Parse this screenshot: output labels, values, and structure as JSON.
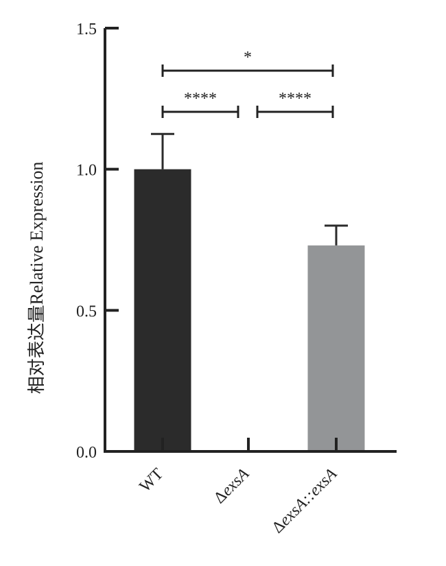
{
  "chart_data": {
    "type": "bar",
    "ylabel": "相对表达量Relative Expression",
    "ylim": [
      0,
      1.5
    ],
    "yticks": [
      {
        "value": 0.0,
        "label": "0.0"
      },
      {
        "value": 0.5,
        "label": "0.5"
      },
      {
        "value": 1.0,
        "label": "1.0"
      },
      {
        "value": 1.5,
        "label": "1.5"
      }
    ],
    "categories": [
      {
        "prefix": "",
        "main": "WT"
      },
      {
        "prefix": "Δ",
        "main": "exsA"
      },
      {
        "prefix": "Δ",
        "main": "exsA::exsA"
      }
    ],
    "values": [
      1.0,
      0.0,
      0.73
    ],
    "errors": [
      0.125,
      0.0,
      0.07
    ],
    "colors": [
      "#2b2b2b",
      "#2b2b2b",
      "#939597"
    ],
    "significance": [
      {
        "from": 0,
        "to": 2,
        "label": "*"
      },
      {
        "from": 0,
        "to": 1,
        "label": "****"
      },
      {
        "from": 1,
        "to": 2,
        "label": "****"
      }
    ]
  }
}
